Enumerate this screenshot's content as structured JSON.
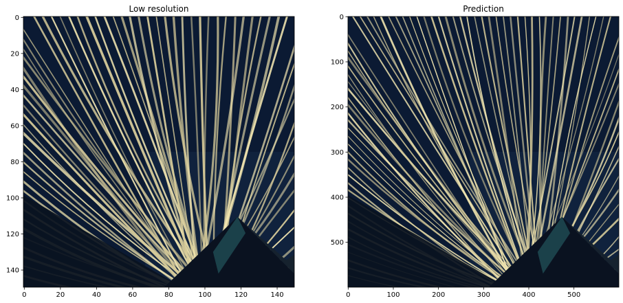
{
  "panels": [
    {
      "title": "Low resolution",
      "x_ticks": [
        "0",
        "20",
        "40",
        "60",
        "80",
        "100",
        "120",
        "140"
      ],
      "y_ticks": [
        "0",
        "20",
        "40",
        "60",
        "80",
        "100",
        "120",
        "140"
      ],
      "extent": [
        150,
        150
      ]
    },
    {
      "title": "Prediction",
      "x_ticks": [
        "0",
        "100",
        "200",
        "300",
        "400",
        "500"
      ],
      "y_ticks": [
        "0",
        "100",
        "200",
        "300",
        "400",
        "500"
      ],
      "extent": [
        600,
        600
      ]
    }
  ],
  "colors": {
    "sky": "#0b1a33",
    "sky_light": "#1a3550",
    "strand": "#d8cc9a",
    "strand_bright": "#f2e6b0",
    "tower": "#0a1220",
    "tower_teal": "#1f4a52"
  }
}
